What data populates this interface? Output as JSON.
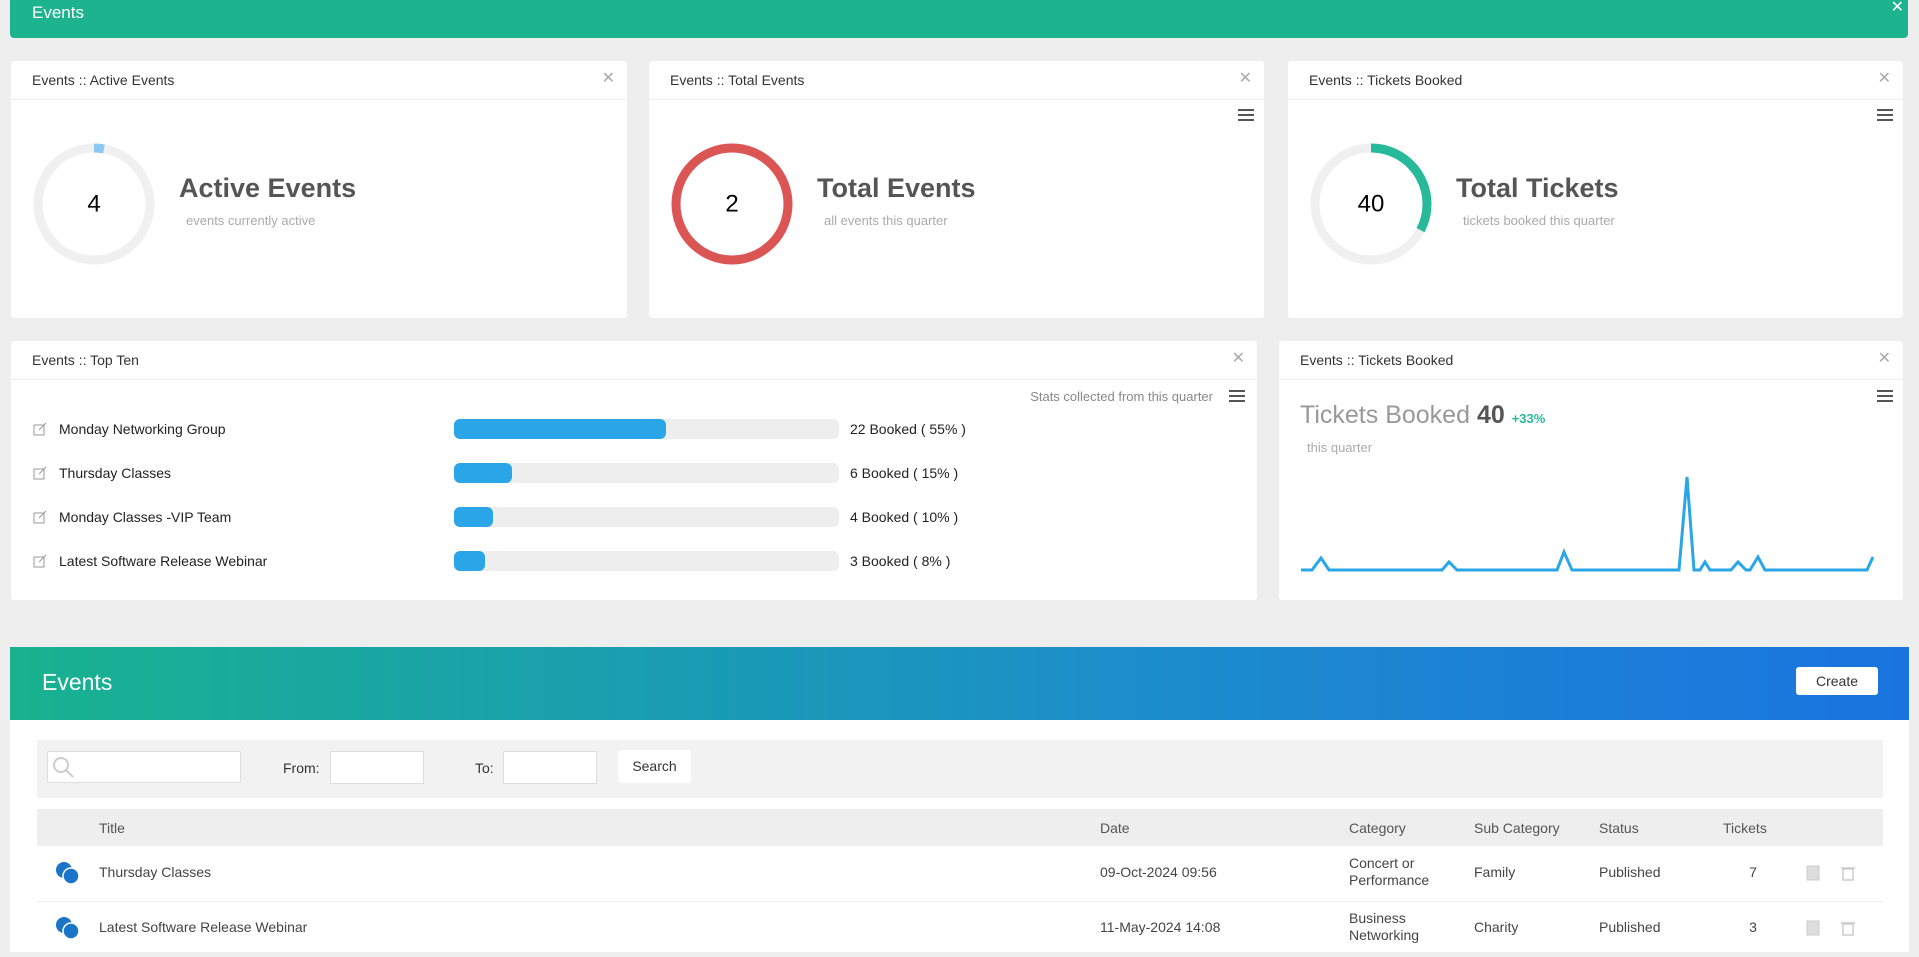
{
  "header": {
    "title": "Events"
  },
  "widgets": [
    {
      "title": "Events :: Active Events",
      "value": 4,
      "heading": "Active Events",
      "subtitle": "events currently active"
    },
    {
      "title": "Events :: Total Events",
      "value": 2,
      "heading": "Total Events",
      "subtitle": "all events this quarter"
    },
    {
      "title": "Events :: Tickets Booked",
      "value": 40,
      "heading": "Total Tickets",
      "subtitle": "tickets booked this quarter"
    }
  ],
  "top_ten": {
    "title": "Events :: Top Ten",
    "note": "Stats collected from this quarter",
    "items": [
      {
        "name": "Monday Networking Group",
        "percent": 55,
        "label": "22 Booked ( 55% )"
      },
      {
        "name": "Thursday Classes",
        "percent": 15,
        "label": "6 Booked ( 15% )"
      },
      {
        "name": "Monday Classes -VIP Team",
        "percent": 10,
        "label": "4 Booked ( 10% )"
      },
      {
        "name": "Latest Software Release Webinar",
        "percent": 8,
        "label": "3 Booked ( 8% )"
      }
    ]
  },
  "tickets_chart": {
    "title": "Events :: Tickets Booked",
    "heading": "Tickets Booked",
    "value": 40,
    "change": "+33%",
    "subtitle": "this quarter"
  },
  "events": {
    "title": "Events",
    "create": "Create",
    "search": {
      "from": "From:",
      "to": "To:",
      "button": "Search"
    },
    "columns": [
      "Title",
      "Date",
      "Category",
      "Sub Category",
      "Status",
      "Tickets"
    ],
    "rows": [
      [
        "Thursday Classes",
        "09-Oct-2024 09:56",
        "Concert or Performance",
        "Family",
        "Published",
        7
      ],
      [
        "Latest Software Release Webinar",
        "11-May-2024 14:08",
        "Business Networking",
        "Charity",
        "Published",
        3
      ]
    ]
  }
}
